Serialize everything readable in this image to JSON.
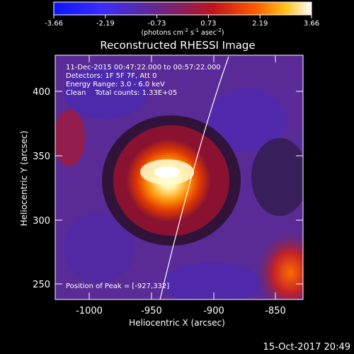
{
  "colorbar": {
    "ticks": [
      "-3.66",
      "-2.19",
      "-0.73",
      "0.73",
      "2.19",
      "3.66"
    ],
    "units_text": "(photons cm",
    "units_exp1": "-2",
    "units_mid": " s",
    "units_exp2": "-1",
    "units_mid2": " asec",
    "units_exp3": "-2",
    "units_close": ")"
  },
  "title": "Reconstructed RHESSI Image",
  "annotations": {
    "line1": "11-Dec-2015 00:47:22.000 to 00:57:22.000",
    "line2": "Detectors: 1F 5F 7F, Att 0",
    "line3": "Energy Range: 3.0 - 6.0 keV",
    "line4": "Clean    Total counts: 1.33E+05",
    "peak": "Position of Peak = [-927,332]"
  },
  "axes": {
    "xlabel": "Heliocentric X (arcsec)",
    "ylabel": "Heliocentric Y (arcsec)",
    "xticks": [
      "-1000",
      "-950",
      "-900",
      "-850"
    ],
    "yticks": [
      "400",
      "350",
      "300",
      "250"
    ],
    "xrange": [
      -1026,
      -832
    ],
    "yrange": [
      235,
      432
    ]
  },
  "footer": "15-Oct-2017 20:49",
  "colors": {
    "background": "#000000",
    "low": "#1a20ff",
    "mid": "#7a2aa8",
    "high": "#ff4a00",
    "peak": "#ffffff"
  }
}
